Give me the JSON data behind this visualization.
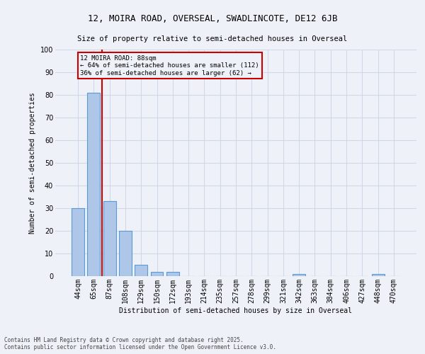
{
  "title1": "12, MOIRA ROAD, OVERSEAL, SWADLINCOTE, DE12 6JB",
  "title2": "Size of property relative to semi-detached houses in Overseal",
  "xlabel": "Distribution of semi-detached houses by size in Overseal",
  "ylabel": "Number of semi-detached properties",
  "categories": [
    "44sqm",
    "65sqm",
    "87sqm",
    "108sqm",
    "129sqm",
    "150sqm",
    "172sqm",
    "193sqm",
    "214sqm",
    "235sqm",
    "257sqm",
    "278sqm",
    "299sqm",
    "321sqm",
    "342sqm",
    "363sqm",
    "384sqm",
    "406sqm",
    "427sqm",
    "448sqm",
    "470sqm"
  ],
  "values": [
    30,
    81,
    33,
    20,
    5,
    2,
    2,
    0,
    0,
    0,
    0,
    0,
    0,
    0,
    1,
    0,
    0,
    0,
    0,
    1,
    0
  ],
  "bar_color": "#aec6e8",
  "bar_edge_color": "#5b9bd5",
  "vline_color": "#cc0000",
  "property_label": "12 MOIRA ROAD: 88sqm",
  "annotation_line1": "← 64% of semi-detached houses are smaller (112)",
  "annotation_line2": "36% of semi-detached houses are larger (62) →",
  "annotation_box_color": "#cc0000",
  "ylim": [
    0,
    100
  ],
  "yticks": [
    0,
    10,
    20,
    30,
    40,
    50,
    60,
    70,
    80,
    90,
    100
  ],
  "grid_color": "#d0d8e8",
  "background_color": "#eef2f8",
  "footer1": "Contains HM Land Registry data © Crown copyright and database right 2025.",
  "footer2": "Contains public sector information licensed under the Open Government Licence v3.0."
}
